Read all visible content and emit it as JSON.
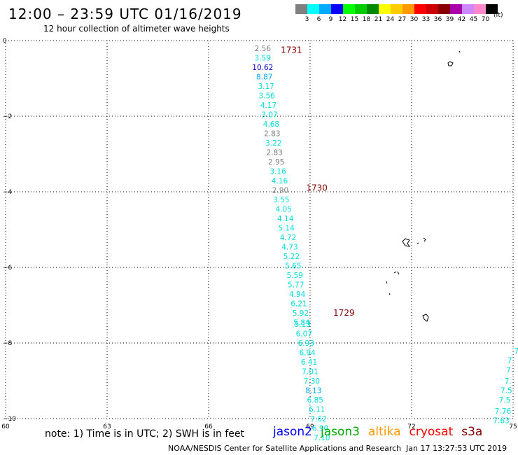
{
  "header": {
    "title": "12:00 – 23:59 UTC 01/16/2019",
    "subtitle": "12 hour collection of altimeter wave heights"
  },
  "legend": {
    "swatches": [
      {
        "color": "#808080",
        "label": "3"
      },
      {
        "color": "#00ffff",
        "label": "6"
      },
      {
        "color": "#00aaff",
        "label": "9"
      },
      {
        "color": "#0000ff",
        "label": "12"
      },
      {
        "color": "#00ff00",
        "label": "15"
      },
      {
        "color": "#00cc00",
        "label": "18"
      },
      {
        "color": "#008800",
        "label": "21"
      },
      {
        "color": "#ffff00",
        "label": "24"
      },
      {
        "color": "#ffcc00",
        "label": "27"
      },
      {
        "color": "#ff9900",
        "label": "30"
      },
      {
        "color": "#ff0000",
        "label": "33"
      },
      {
        "color": "#cc0000",
        "label": "36"
      },
      {
        "color": "#880000",
        "label": "39"
      },
      {
        "color": "#aa00aa",
        "label": "42"
      },
      {
        "color": "#cc88ff",
        "label": "45"
      },
      {
        "color": "#ff88cc",
        "label": "70"
      },
      {
        "color": "#000000",
        "label": ""
      }
    ],
    "unit": "(ft)"
  },
  "chart_data": {
    "type": "scatter",
    "title": "12:00 – 23:59 UTC 01/16/2019",
    "subtitle": "12 hour collection of altimeter wave heights",
    "xlim": [
      60,
      75
    ],
    "ylim": [
      -10,
      0
    ],
    "x_ticks": [
      "60",
      "63",
      "66",
      "69",
      "72",
      "75"
    ],
    "y_ticks": [
      "0",
      "−2",
      "−4",
      "−6",
      "−8",
      "−10"
    ],
    "grid": true,
    "main_track": [
      {
        "x": 67.6,
        "y": -0.2,
        "v": "2.56",
        "c": "#808080"
      },
      {
        "x": 67.6,
        "y": -0.45,
        "v": "3.59",
        "c": "#00dddd"
      },
      {
        "x": 67.6,
        "y": -0.7,
        "v": "10.62",
        "c": "#0000cc"
      },
      {
        "x": 67.65,
        "y": -0.95,
        "v": "8.87",
        "c": "#00aaff"
      },
      {
        "x": 67.7,
        "y": -1.2,
        "v": "3.17",
        "c": "#00dddd"
      },
      {
        "x": 67.72,
        "y": -1.45,
        "v": "3.56",
        "c": "#00dddd"
      },
      {
        "x": 67.77,
        "y": -1.7,
        "v": "4.17",
        "c": "#00dddd"
      },
      {
        "x": 67.8,
        "y": -1.95,
        "v": "3.07",
        "c": "#00dddd"
      },
      {
        "x": 67.85,
        "y": -2.2,
        "v": "4.68",
        "c": "#00dddd"
      },
      {
        "x": 67.88,
        "y": -2.45,
        "v": "2.83",
        "c": "#808080"
      },
      {
        "x": 67.92,
        "y": -2.7,
        "v": "3.22",
        "c": "#00dddd"
      },
      {
        "x": 67.95,
        "y": -2.95,
        "v": "2.83",
        "c": "#808080"
      },
      {
        "x": 68.0,
        "y": -3.2,
        "v": "2.95",
        "c": "#808080"
      },
      {
        "x": 68.05,
        "y": -3.45,
        "v": "3.16",
        "c": "#00dddd"
      },
      {
        "x": 68.1,
        "y": -3.7,
        "v": "4.16",
        "c": "#00dddd"
      },
      {
        "x": 68.12,
        "y": -3.95,
        "v": "2.90",
        "c": "#808080"
      },
      {
        "x": 68.15,
        "y": -4.2,
        "v": "3.55",
        "c": "#00dddd"
      },
      {
        "x": 68.22,
        "y": -4.45,
        "v": "4.05",
        "c": "#00dddd"
      },
      {
        "x": 68.27,
        "y": -4.7,
        "v": "4.14",
        "c": "#00dddd"
      },
      {
        "x": 68.3,
        "y": -4.95,
        "v": "5.14",
        "c": "#00dddd"
      },
      {
        "x": 68.35,
        "y": -5.2,
        "v": "4.72",
        "c": "#00dddd"
      },
      {
        "x": 68.4,
        "y": -5.45,
        "v": "4.73",
        "c": "#00dddd"
      },
      {
        "x": 68.45,
        "y": -5.7,
        "v": "5.22",
        "c": "#00dddd"
      },
      {
        "x": 68.5,
        "y": -5.95,
        "v": "5.65",
        "c": "#00dddd"
      },
      {
        "x": 68.55,
        "y": -6.2,
        "v": "5.59",
        "c": "#00dddd"
      },
      {
        "x": 68.58,
        "y": -6.45,
        "v": "5.77",
        "c": "#00dddd"
      },
      {
        "x": 68.62,
        "y": -6.7,
        "v": "4.94",
        "c": "#00dddd"
      },
      {
        "x": 68.67,
        "y": -6.95,
        "v": "6.21",
        "c": "#00dddd"
      },
      {
        "x": 68.72,
        "y": -7.2,
        "v": "5.92",
        "c": "#00dddd"
      },
      {
        "x": 68.75,
        "y": -7.45,
        "v": "5.84",
        "c": "#00dddd"
      },
      {
        "x": 68.78,
        "y": -7.5,
        "v": "5.13",
        "c": "#00dddd"
      },
      {
        "x": 68.82,
        "y": -7.75,
        "v": "6.07",
        "c": "#00dddd"
      },
      {
        "x": 68.88,
        "y": -8.0,
        "v": "6.93",
        "c": "#00dddd"
      },
      {
        "x": 68.92,
        "y": -8.25,
        "v": "6.94",
        "c": "#00dddd"
      },
      {
        "x": 68.97,
        "y": -8.5,
        "v": "6.41",
        "c": "#00dddd"
      },
      {
        "x": 69.0,
        "y": -8.75,
        "v": "7.01",
        "c": "#00dddd"
      },
      {
        "x": 69.05,
        "y": -9.0,
        "v": "7.30",
        "c": "#00dddd"
      },
      {
        "x": 69.1,
        "y": -9.25,
        "v": "8.13",
        "c": "#00aaff"
      },
      {
        "x": 69.15,
        "y": -9.5,
        "v": "6.85",
        "c": "#00dddd"
      },
      {
        "x": 69.2,
        "y": -9.75,
        "v": "6.11",
        "c": "#00dddd"
      },
      {
        "x": 69.25,
        "y": -10.0,
        "v": "7.62",
        "c": "#00dddd"
      },
      {
        "x": 69.3,
        "y": -10.25,
        "v": "6.90",
        "c": "#00dddd"
      },
      {
        "x": 69.35,
        "y": -10.5,
        "v": "7.10",
        "c": "#00dddd"
      }
    ],
    "edge_track": [
      {
        "x": 75.1,
        "y": -8.2,
        "v": "7",
        "c": "#00dddd"
      },
      {
        "x": 74.9,
        "y": -8.45,
        "v": "7",
        "c": "#00dddd"
      },
      {
        "x": 74.9,
        "y": -8.7,
        "v": "7.",
        "c": "#00dddd"
      },
      {
        "x": 74.85,
        "y": -9.0,
        "v": "7.",
        "c": "#00dddd"
      },
      {
        "x": 74.8,
        "y": -9.25,
        "v": "7.5",
        "c": "#00dddd"
      },
      {
        "x": 74.75,
        "y": -9.5,
        "v": "7.5",
        "c": "#00dddd"
      },
      {
        "x": 74.7,
        "y": -9.8,
        "v": "7.76",
        "c": "#00dddd"
      },
      {
        "x": 74.65,
        "y": -10.05,
        "v": "7.63",
        "c": "#00dddd"
      }
    ],
    "time_labels": [
      {
        "x": 68.45,
        "y": -0.25,
        "text": "1731"
      },
      {
        "x": 69.2,
        "y": -3.9,
        "text": "1730"
      },
      {
        "x": 70.0,
        "y": -7.2,
        "text": "1729"
      }
    ]
  },
  "footer": {
    "note": "note:  1) Time is in UTC;  2) SWH is in feet",
    "satellites": [
      {
        "name": "jason2",
        "color": "#0000ff"
      },
      {
        "name": "jason3",
        "color": "#00aa00"
      },
      {
        "name": "altika",
        "color": "#ff9900"
      },
      {
        "name": "cryosat",
        "color": "#ff0000"
      },
      {
        "name": "s3a",
        "color": "#880000"
      }
    ],
    "credit": "NOAA/NESDIS Center for Satellite Applications and Research",
    "timestamp": "Jan 17 13:27:53 UTC 2019"
  }
}
